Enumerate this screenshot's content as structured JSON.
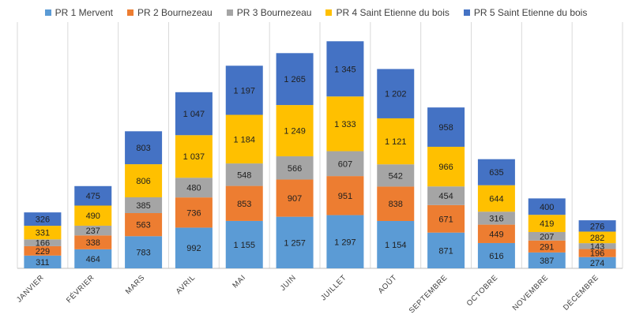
{
  "chart_data": {
    "type": "bar",
    "stacked": true,
    "categories": [
      "JANVIER",
      "FÉVRIER",
      "MARS",
      "AVRIL",
      "MAI",
      "JUIN",
      "JUILLET",
      "AOÛT",
      "SEPTEMBRE",
      "OCTOBRE",
      "NOVEMBRE",
      "DÉCEMBRE"
    ],
    "series": [
      {
        "name": "PR 1 Mervent",
        "color": "#5b9bd5",
        "values": [
          311,
          464,
          783,
          992,
          1155,
          1257,
          1297,
          1154,
          871,
          616,
          387,
          274
        ]
      },
      {
        "name": "PR 2 Bournezeau",
        "color": "#ed7d31",
        "values": [
          229,
          338,
          563,
          736,
          853,
          907,
          951,
          838,
          671,
          449,
          291,
          196
        ]
      },
      {
        "name": "PR 3 Bournezeau",
        "color": "#a5a5a5",
        "values": [
          166,
          237,
          385,
          480,
          548,
          566,
          607,
          542,
          454,
          316,
          207,
          143
        ]
      },
      {
        "name": "PR 4 Saint Etienne du bois",
        "color": "#ffc000",
        "values": [
          331,
          490,
          806,
          1037,
          1184,
          1249,
          1333,
          1121,
          966,
          644,
          419,
          282
        ]
      },
      {
        "name": "PR 5 Saint Etienne du bois",
        "color": "#4472c4",
        "values": [
          326,
          475,
          803,
          1047,
          1197,
          1265,
          1345,
          1202,
          958,
          635,
          400,
          276
        ]
      }
    ],
    "legend_position": "top",
    "gridlines": "vertical",
    "ylim": [
      0,
      5700
    ],
    "title": "",
    "xlabel": "",
    "ylabel": ""
  }
}
